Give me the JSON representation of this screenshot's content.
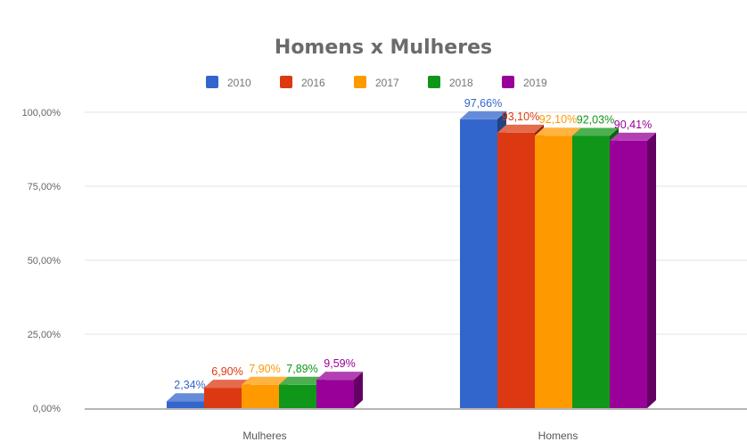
{
  "chart_data": {
    "type": "bar",
    "style": "3d-grouped-column",
    "title": "Homens x Mulheres",
    "xlabel": "",
    "ylabel": "",
    "categories": [
      "Mulheres",
      "Homens"
    ],
    "series": [
      {
        "name": "2010",
        "color": "#3366cc",
        "values": [
          2.34,
          97.66
        ],
        "labels": [
          "2,34%",
          "97,66%"
        ]
      },
      {
        "name": "2016",
        "color": "#dc3912",
        "values": [
          6.9,
          93.1
        ],
        "labels": [
          "6,90%",
          "93,10%"
        ]
      },
      {
        "name": "2017",
        "color": "#ff9900",
        "values": [
          7.9,
          92.1
        ],
        "labels": [
          "7,90%",
          "92,10%"
        ]
      },
      {
        "name": "2018",
        "color": "#109618",
        "values": [
          7.89,
          92.03
        ],
        "labels": [
          "7,89%",
          "92,03%"
        ]
      },
      {
        "name": "2019",
        "color": "#990099",
        "values": [
          9.59,
          90.41
        ],
        "labels": [
          "9,59%",
          "90,41%"
        ]
      }
    ],
    "ylim": [
      0,
      100
    ],
    "yticks": [
      0,
      25,
      50,
      75,
      100
    ],
    "ytick_labels": [
      "0,00%",
      "25,00%",
      "50,00%",
      "75,00%",
      "100,00%"
    ],
    "grid": true,
    "legend_position": "top-center"
  }
}
